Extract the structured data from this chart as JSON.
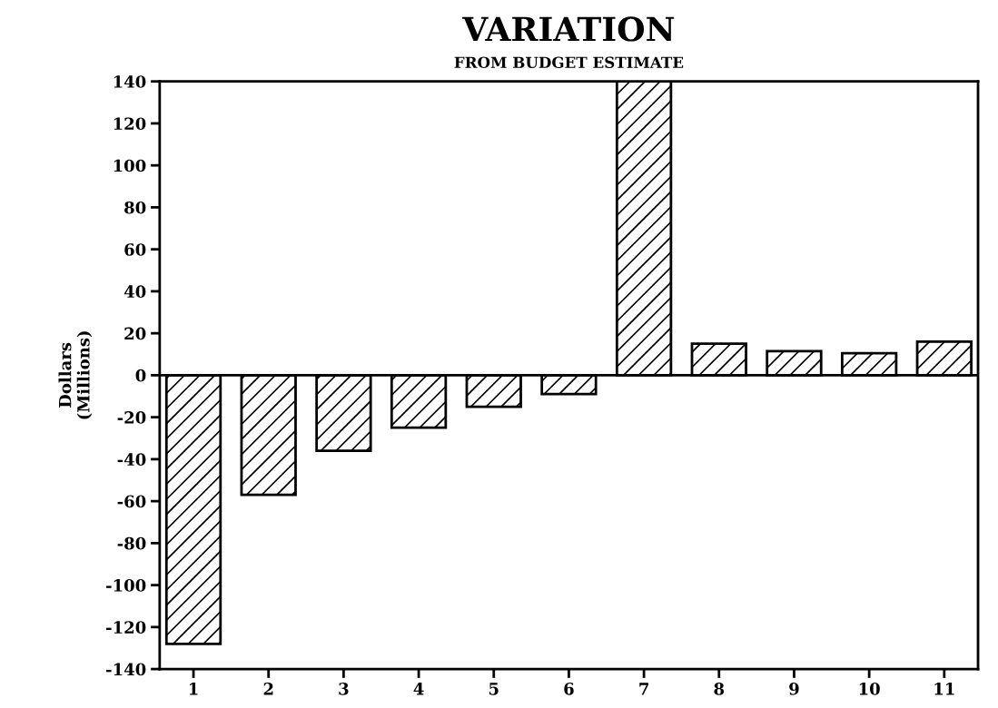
{
  "chart_data": {
    "type": "bar",
    "title": "VARIATION",
    "subtitle": "FROM BUDGET ESTIMATE",
    "ylabel": "Dollars\n(Millions)",
    "categories": [
      "1",
      "2",
      "3",
      "4",
      "5",
      "6",
      "7",
      "8",
      "9",
      "10",
      "11"
    ],
    "values": [
      -128,
      -57,
      -36,
      -25,
      -15,
      -9,
      140,
      15,
      11.5,
      10.5,
      16
    ],
    "color": "#000000",
    "ylim": [
      -140,
      140
    ],
    "yticks": [
      -140,
      -120,
      -100,
      -80,
      -60,
      -40,
      -20,
      0,
      20,
      40,
      60,
      80,
      100,
      120,
      140
    ],
    "ref_lines": [
      {
        "axis": "y",
        "value": 0,
        "color": "#000000"
      }
    ],
    "grid": false
  }
}
